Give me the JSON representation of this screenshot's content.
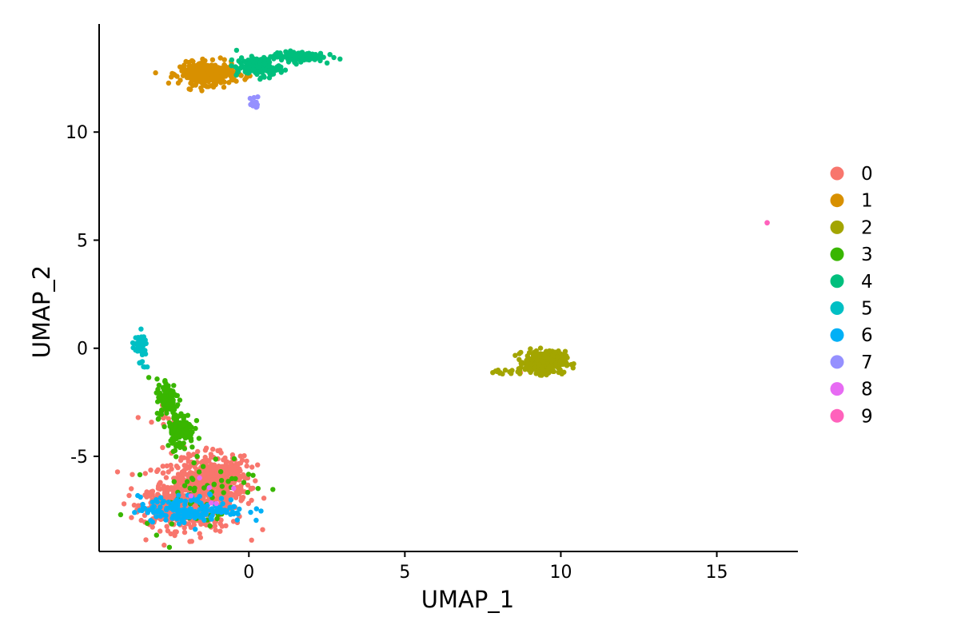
{
  "chart_data": {
    "type": "scatter",
    "xlabel": "UMAP_1",
    "ylabel": "UMAP_2",
    "xlim": [
      -4.8,
      17.6
    ],
    "ylim": [
      -9.4,
      15.0
    ],
    "xticks": [
      0,
      5,
      10,
      15
    ],
    "xtick_labels": [
      "0",
      "5",
      "10",
      "15"
    ],
    "yticks": [
      -5,
      0,
      5,
      10
    ],
    "ytick_labels": [
      "-5",
      "0",
      "5",
      "10"
    ],
    "grid": false,
    "legend": {
      "placement": "right",
      "entries": [
        "0",
        "1",
        "2",
        "3",
        "4",
        "5",
        "6",
        "7",
        "8",
        "9"
      ]
    },
    "colors": [
      "#F8766D",
      "#D89000",
      "#A3A500",
      "#39B600",
      "#00BF7D",
      "#00BFC4",
      "#00B0F6",
      "#9590FF",
      "#E76BF3",
      "#FF62BC"
    ],
    "series": [
      {
        "name": "0",
        "clusters": [
          {
            "cx": -1.6,
            "cy": -6.7,
            "sx": 0.75,
            "sy": 0.85,
            "n": 520
          },
          {
            "cx": -2.4,
            "cy": -7.3,
            "sx": 0.55,
            "sy": 0.45,
            "n": 260
          },
          {
            "cx": -0.9,
            "cy": -6.0,
            "sx": 0.45,
            "sy": 0.5,
            "n": 200
          },
          {
            "cx": -2.8,
            "cy": -3.4,
            "sx": 0.25,
            "sy": 0.5,
            "n": 10
          },
          {
            "cx": 8.7,
            "cy": -1.1,
            "sx": 0.03,
            "sy": 0.03,
            "n": 1
          }
        ]
      },
      {
        "name": "1",
        "clusters": [
          {
            "cx": -1.3,
            "cy": 12.7,
            "sx": 0.45,
            "sy": 0.25,
            "n": 360
          }
        ]
      },
      {
        "name": "2",
        "clusters": [
          {
            "cx": 9.5,
            "cy": -0.65,
            "sx": 0.32,
            "sy": 0.25,
            "n": 340
          },
          {
            "cx": 8.3,
            "cy": -1.1,
            "sx": 0.3,
            "sy": 0.08,
            "n": 12
          }
        ]
      },
      {
        "name": "3",
        "clusters": [
          {
            "cx": -2.6,
            "cy": -2.3,
            "sx": 0.18,
            "sy": 0.45,
            "n": 110
          },
          {
            "cx": -2.2,
            "cy": -3.8,
            "sx": 0.22,
            "sy": 0.45,
            "n": 110
          },
          {
            "cx": -1.6,
            "cy": -6.5,
            "sx": 0.9,
            "sy": 0.9,
            "n": 60
          }
        ]
      },
      {
        "name": "4",
        "clusters": [
          {
            "cx": 0.3,
            "cy": 13.0,
            "sx": 0.35,
            "sy": 0.22,
            "n": 150
          },
          {
            "cx": 1.6,
            "cy": 13.5,
            "sx": 0.4,
            "sy": 0.12,
            "n": 140
          }
        ]
      },
      {
        "name": "5",
        "clusters": [
          {
            "cx": -3.5,
            "cy": 0.1,
            "sx": 0.12,
            "sy": 0.22,
            "n": 45
          },
          {
            "cx": -3.4,
            "cy": -0.7,
            "sx": 0.06,
            "sy": 0.2,
            "n": 8
          }
        ]
      },
      {
        "name": "6",
        "clusters": [
          {
            "cx": -1.8,
            "cy": -7.45,
            "sx": 0.85,
            "sy": 0.3,
            "n": 170
          }
        ]
      },
      {
        "name": "7",
        "clusters": [
          {
            "cx": 0.2,
            "cy": 11.35,
            "sx": 0.08,
            "sy": 0.15,
            "n": 14
          }
        ]
      },
      {
        "name": "8",
        "clusters": [
          {
            "cx": -1.3,
            "cy": -6.8,
            "sx": 0.6,
            "sy": 0.6,
            "n": 6
          }
        ]
      },
      {
        "name": "9",
        "clusters": [
          {
            "cx": 16.6,
            "cy": 5.8,
            "sx": 0.02,
            "sy": 0.02,
            "n": 3
          }
        ]
      }
    ]
  }
}
